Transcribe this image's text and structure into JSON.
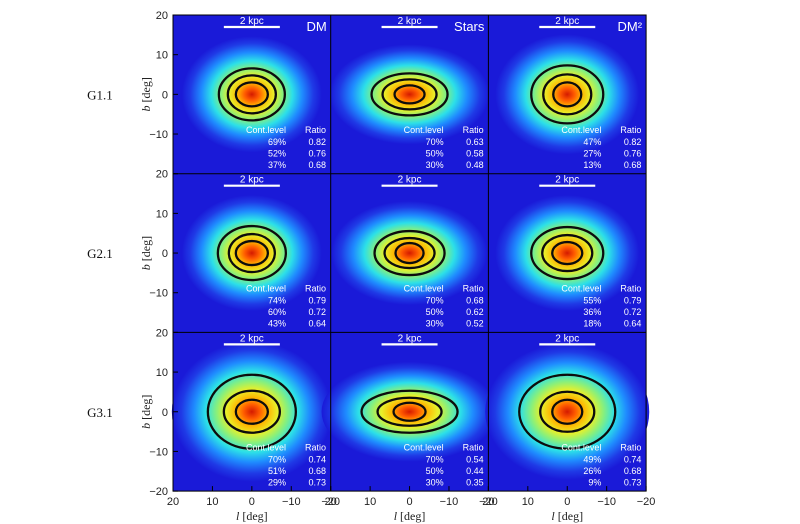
{
  "chart_data": {
    "type": "heatmap",
    "x_range": [
      20,
      -20
    ],
    "y_range": [
      -20,
      20
    ],
    "x_ticks": [
      "20",
      "10",
      "0",
      "−10",
      "−20"
    ],
    "y_ticks": [
      "20",
      "10",
      "0",
      "−10",
      "−20"
    ],
    "xlabel_var": "l",
    "xlabel_unit": "[deg]",
    "ylabel_var": "b",
    "ylabel_unit": "[deg]",
    "columns": [
      "DM",
      "Stars",
      "DM²"
    ],
    "scale_bar": "2 kpc",
    "table_headers": [
      "Cont.level",
      "Ratio"
    ],
    "colors": {
      "background": "#1a1ad8",
      "core": "#d41a00",
      "contour": "#0d0d0d"
    },
    "rows": [
      {
        "label": "G1.1",
        "panels": [
          {
            "contours": [
              {
                "level": "69%",
                "ratio": "0.82"
              },
              {
                "level": "52%",
                "ratio": "0.76"
              },
              {
                "level": "37%",
                "ratio": "0.68"
              }
            ]
          },
          {
            "contours": [
              {
                "level": "70%",
                "ratio": "0.63"
              },
              {
                "level": "50%",
                "ratio": "0.58"
              },
              {
                "level": "30%",
                "ratio": "0.48"
              }
            ]
          },
          {
            "contours": [
              {
                "level": "47%",
                "ratio": "0.82"
              },
              {
                "level": "27%",
                "ratio": "0.76"
              },
              {
                "level": "13%",
                "ratio": "0.68"
              }
            ]
          }
        ]
      },
      {
        "label": "G2.1",
        "panels": [
          {
            "contours": [
              {
                "level": "74%",
                "ratio": "0.79"
              },
              {
                "level": "60%",
                "ratio": "0.72"
              },
              {
                "level": "43%",
                "ratio": "0.64"
              }
            ]
          },
          {
            "contours": [
              {
                "level": "70%",
                "ratio": "0.68"
              },
              {
                "level": "50%",
                "ratio": "0.62"
              },
              {
                "level": "30%",
                "ratio": "0.52"
              }
            ]
          },
          {
            "contours": [
              {
                "level": "55%",
                "ratio": "0.79"
              },
              {
                "level": "36%",
                "ratio": "0.72"
              },
              {
                "level": "18%",
                "ratio": "0.64"
              }
            ]
          }
        ]
      },
      {
        "label": "G3.1",
        "panels": [
          {
            "contours": [
              {
                "level": "70%",
                "ratio": "0.74"
              },
              {
                "level": "51%",
                "ratio": "0.68"
              },
              {
                "level": "29%",
                "ratio": "0.73"
              }
            ]
          },
          {
            "contours": [
              {
                "level": "70%",
                "ratio": "0.54"
              },
              {
                "level": "50%",
                "ratio": "0.44"
              },
              {
                "level": "30%",
                "ratio": "0.35"
              }
            ]
          },
          {
            "contours": [
              {
                "level": "49%",
                "ratio": "0.74"
              },
              {
                "level": "26%",
                "ratio": "0.68"
              },
              {
                "level": "9%",
                "ratio": "0.73"
              }
            ]
          }
        ]
      }
    ]
  }
}
